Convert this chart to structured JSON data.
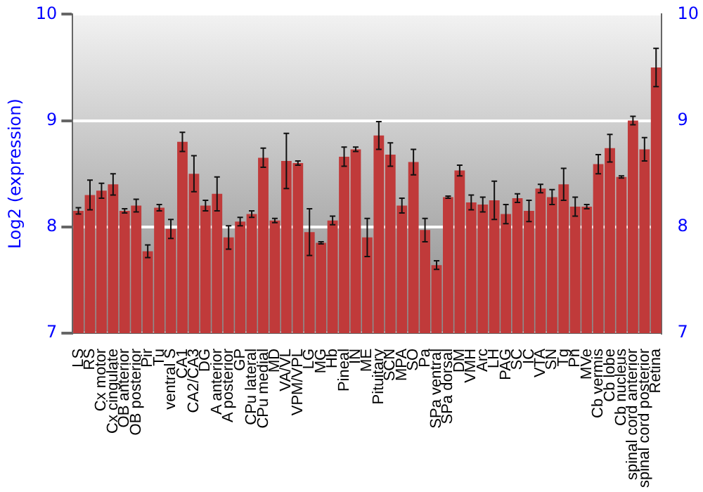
{
  "chart_data": {
    "type": "bar",
    "ylabel": "Log2 (expression)",
    "categories": [
      "LS",
      "RS",
      "Cx motor",
      "Cx cingulate",
      "OB anterior",
      "OB posterior",
      "Pir",
      "Tu",
      "ventral S",
      "CA1",
      "CA2/CA3",
      "DG",
      "A anterior",
      "A posterior",
      "GP",
      "CPu lateral",
      "CPu medial",
      "MD",
      "VA/VL",
      "VPM/VPL",
      "LG",
      "MG",
      "Hb",
      "Pineal",
      "IN",
      "ME",
      "Pituitary",
      "SCN",
      "MPA",
      "SO",
      "Pa",
      "SPa ventral",
      "SPa dorsal",
      "DM",
      "VMH",
      "Arc",
      "LH",
      "PAG",
      "SC",
      "IC",
      "VTA",
      "SN",
      "Tg",
      "Pn",
      "MVe",
      "Cb vermis",
      "Cb lobe",
      "Cb nucleus",
      "spinal cord anterior",
      "spinal cord posterior",
      "Retina"
    ],
    "values": [
      8.15,
      8.3,
      8.34,
      8.4,
      8.15,
      8.2,
      7.77,
      8.18,
      7.98,
      8.8,
      8.5,
      8.2,
      8.31,
      7.9,
      8.05,
      8.12,
      8.65,
      8.06,
      8.62,
      8.6,
      7.95,
      7.85,
      8.06,
      8.66,
      8.73,
      7.9,
      8.86,
      8.68,
      8.2,
      8.61,
      7.97,
      7.64,
      8.28,
      8.53,
      8.23,
      8.21,
      8.25,
      8.12,
      8.27,
      8.15,
      8.36,
      8.28,
      8.4,
      8.19,
      8.19,
      8.59,
      8.74,
      8.47,
      9.0,
      8.73,
      9.5
    ],
    "errors": [
      0.03,
      0.14,
      0.07,
      0.1,
      0.02,
      0.06,
      0.06,
      0.03,
      0.09,
      0.09,
      0.17,
      0.05,
      0.16,
      0.11,
      0.04,
      0.03,
      0.09,
      0.02,
      0.26,
      0.02,
      0.22,
      0.01,
      0.04,
      0.09,
      0.02,
      0.18,
      0.13,
      0.11,
      0.07,
      0.12,
      0.11,
      0.04,
      0.01,
      0.05,
      0.07,
      0.07,
      0.18,
      0.09,
      0.04,
      0.1,
      0.04,
      0.07,
      0.15,
      0.09,
      0.02,
      0.09,
      0.13,
      0.01,
      0.04,
      0.11,
      0.18
    ],
    "color": "#c03a3a",
    "ylim": [
      7,
      10
    ],
    "yticks": [
      7,
      8,
      9,
      10
    ],
    "y2lim": [
      7,
      10
    ],
    "y2ticks": [
      7,
      8,
      9,
      10
    ],
    "grid": "y",
    "legend": false
  }
}
